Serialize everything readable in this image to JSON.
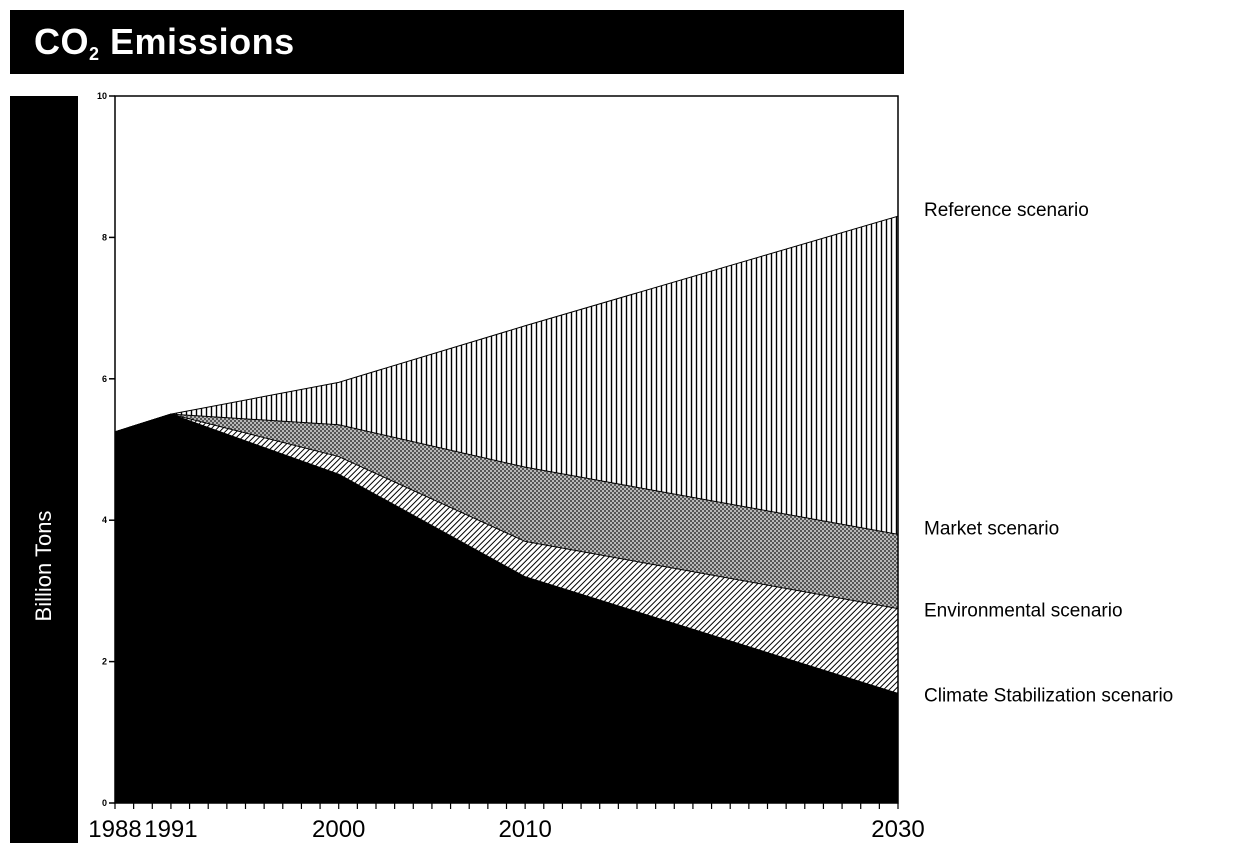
{
  "header": {
    "title_main": "CO",
    "title_sub": "2",
    "title_rest": " Emissions"
  },
  "chart_data": {
    "type": "area",
    "title": "CO2 Emissions",
    "ylabel": "Billion Tons",
    "xlabel": "",
    "xlim": [
      1988,
      2030
    ],
    "ylim": [
      0,
      10
    ],
    "y_ticks": [
      0,
      2,
      4,
      6,
      8,
      10
    ],
    "x_tick_labels": [
      1988,
      1991,
      2000,
      2010,
      2030
    ],
    "grid": false,
    "series": [
      {
        "name": "Reference scenario",
        "pattern": "vertical-lines",
        "x": [
          1988,
          1991,
          2000,
          2010,
          2030
        ],
        "y": [
          5.25,
          5.5,
          5.95,
          6.75,
          8.3
        ]
      },
      {
        "name": "Market scenario",
        "pattern": "dots",
        "x": [
          1988,
          1991,
          2000,
          2010,
          2030
        ],
        "y": [
          5.25,
          5.5,
          5.35,
          4.75,
          3.8
        ]
      },
      {
        "name": "Environmental scenario",
        "pattern": "diagonal-lines",
        "x": [
          1988,
          1991,
          2000,
          2010,
          2030
        ],
        "y": [
          5.25,
          5.5,
          4.9,
          3.7,
          2.75
        ]
      },
      {
        "name": "Climate Stabilization scenario",
        "pattern": "solid-black",
        "x": [
          1988,
          1991,
          2000,
          2010,
          2030
        ],
        "y": [
          5.25,
          5.5,
          4.65,
          3.2,
          1.55
        ]
      }
    ]
  }
}
